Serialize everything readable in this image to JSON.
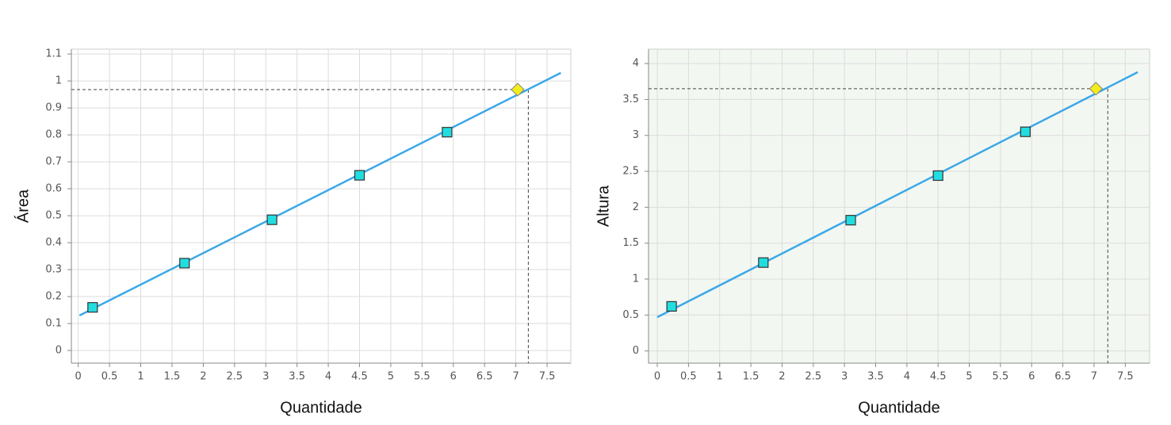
{
  "chart_data": [
    {
      "type": "line",
      "xlabel": "Quantidade",
      "ylabel": "Área",
      "background": "#ffffff",
      "xlim": [
        -0.11,
        7.88
      ],
      "ylim": [
        -0.047,
        1.118
      ],
      "xticks": [
        0,
        0.5,
        1,
        1.5,
        2,
        2.5,
        3,
        3.5,
        4,
        4.5,
        5,
        5.5,
        6,
        6.5,
        7,
        7.5
      ],
      "yticks": [
        0,
        0.1,
        0.2,
        0.3,
        0.4,
        0.5,
        0.6,
        0.7,
        0.8,
        0.9,
        1,
        1.1
      ],
      "grid": true,
      "line": {
        "x": [
          0.02,
          7.72
        ],
        "y": [
          0.13,
          1.03
        ],
        "color": "#3aa8e8"
      },
      "points": {
        "x": [
          0.23,
          1.7,
          3.1,
          4.5,
          5.9
        ],
        "y": [
          0.16,
          0.324,
          0.485,
          0.65,
          0.81
        ],
        "color": "#22dde0"
      },
      "highlight": {
        "x": 7.03,
        "y": 0.968,
        "color": "#f2ec1a"
      },
      "guide": {
        "x": 7.2,
        "y": 0.968
      }
    },
    {
      "type": "line",
      "xlabel": "Quantidade",
      "ylabel": "Altura",
      "background": "#f3f7f2",
      "xlim": [
        -0.14,
        7.89
      ],
      "ylim": [
        -0.17,
        4.2
      ],
      "xticks": [
        0,
        0.5,
        1,
        1.5,
        2,
        2.5,
        3,
        3.5,
        4,
        4.5,
        5,
        5.5,
        6,
        6.5,
        7,
        7.5
      ],
      "yticks": [
        0,
        0.5,
        1,
        1.5,
        2,
        2.5,
        3,
        3.5,
        4
      ],
      "grid": true,
      "line": {
        "x": [
          0,
          7.7
        ],
        "y": [
          0.47,
          3.88
        ],
        "color": "#3aa8e8"
      },
      "points": {
        "x": [
          0.23,
          1.7,
          3.1,
          4.5,
          5.9
        ],
        "y": [
          0.62,
          1.23,
          1.82,
          2.44,
          3.05
        ],
        "color": "#22dde0"
      },
      "highlight": {
        "x": 7.03,
        "y": 3.65,
        "color": "#f2ec1a"
      },
      "guide": {
        "x": 7.22,
        "y": 3.65
      }
    }
  ]
}
